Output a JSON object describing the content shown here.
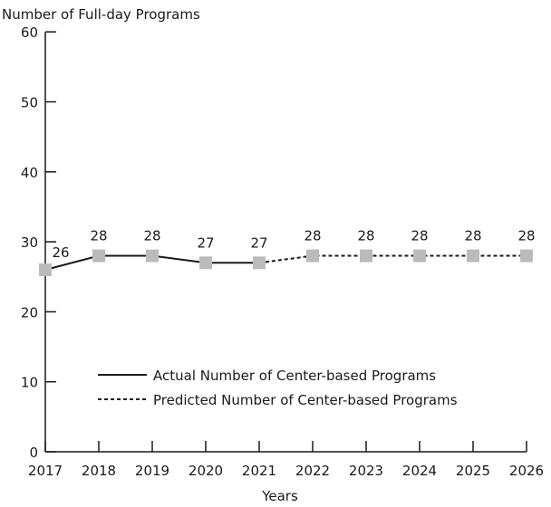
{
  "chart_data": {
    "type": "line",
    "title": "Number of Full-day Programs",
    "xlabel": "Years",
    "ylabel": "",
    "ylim": [
      0,
      60
    ],
    "yticks": [
      0,
      10,
      20,
      30,
      40,
      50,
      60
    ],
    "x": [
      "2017",
      "2018",
      "2019",
      "2020",
      "2021",
      "2022",
      "2023",
      "2024",
      "2025",
      "2026"
    ],
    "series": [
      {
        "name": "Actual Number of Center-based Programs",
        "style": "solid",
        "x": [
          "2017",
          "2018",
          "2019",
          "2020",
          "2021"
        ],
        "values": [
          26,
          28,
          28,
          27,
          27
        ]
      },
      {
        "name": "Predicted Number of Center-based Programs",
        "style": "dashed",
        "x": [
          "2021",
          "2022",
          "2023",
          "2024",
          "2025",
          "2026"
        ],
        "values": [
          27,
          28,
          28,
          28,
          28,
          28
        ]
      }
    ],
    "data_labels": [
      "26",
      "28",
      "28",
      "27",
      "27",
      "28",
      "28",
      "28",
      "28",
      "28"
    ],
    "marker_color": "#bbbbbb",
    "line_color": "#1a1a1a",
    "grid": false,
    "legend_position": "lower-center"
  }
}
